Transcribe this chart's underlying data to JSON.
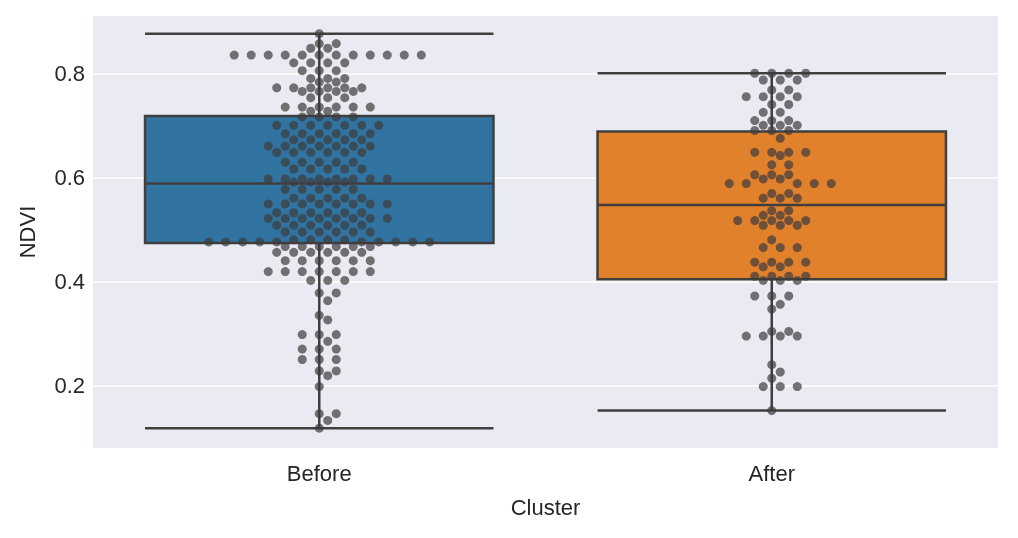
{
  "chart_data": {
    "type": "box",
    "xlabel": "Cluster",
    "ylabel": "NDVI",
    "categories": [
      "Before",
      "After"
    ],
    "colors": [
      "#3274a1",
      "#e1812c"
    ],
    "boxes": [
      {
        "low": 0.118,
        "q1": 0.474,
        "median": 0.588,
        "q3": 0.718,
        "high": 0.876
      },
      {
        "low": 0.152,
        "q1": 0.404,
        "median": 0.547,
        "q3": 0.688,
        "high": 0.8
      }
    ],
    "ylim": [
      0.08,
      0.91
    ],
    "yticks": [
      0.2,
      0.4,
      0.6,
      0.8
    ],
    "grid": "y",
    "marker": "circle",
    "series": [
      {
        "type": "scatter",
        "color": "#3c3c3c",
        "x": [
          "Before",
          "Before",
          "Before",
          "Before",
          "Before",
          "Before",
          "Before",
          "Before",
          "Before",
          "Before",
          "Before",
          "Before",
          "Before",
          "Before",
          "Before",
          "Before",
          "Before",
          "Before",
          "Before",
          "Before",
          "Before",
          "Before",
          "Before",
          "Before",
          "Before",
          "Before",
          "Before",
          "Before",
          "Before",
          "Before",
          "Before",
          "Before",
          "Before",
          "Before",
          "Before",
          "Before",
          "Before",
          "Before",
          "Before",
          "Before",
          "Before",
          "Before",
          "Before",
          "Before",
          "Before",
          "Before",
          "Before",
          "Before",
          "Before",
          "Before",
          "Before",
          "Before",
          "Before",
          "Before",
          "Before",
          "Before",
          "Before",
          "Before",
          "Before",
          "Before",
          "Before",
          "Before",
          "Before",
          "Before",
          "Before",
          "Before",
          "Before",
          "Before",
          "Before",
          "Before",
          "Before",
          "Before",
          "Before",
          "Before",
          "Before",
          "Before",
          "Before",
          "Before",
          "Before",
          "Before",
          "Before",
          "Before",
          "Before",
          "Before",
          "Before",
          "Before",
          "Before",
          "Before",
          "Before",
          "Before",
          "Before",
          "Before",
          "Before",
          "Before",
          "Before",
          "Before",
          "Before",
          "Before",
          "Before",
          "Before",
          "Before",
          "Before",
          "Before",
          "Before",
          "Before",
          "Before",
          "Before",
          "Before",
          "Before",
          "Before",
          "Before",
          "Before",
          "Before",
          "Before",
          "Before",
          "Before",
          "Before",
          "Before",
          "Before",
          "Before",
          "Before",
          "Before",
          "Before",
          "Before",
          "Before",
          "Before",
          "Before",
          "Before",
          "Before",
          "Before",
          "Before",
          "Before",
          "Before",
          "Before",
          "Before",
          "Before",
          "Before",
          "Before",
          "Before",
          "Before",
          "Before",
          "Before",
          "Before",
          "Before",
          "Before",
          "Before",
          "Before",
          "Before",
          "Before",
          "Before",
          "Before",
          "Before",
          "Before",
          "Before",
          "Before",
          "Before",
          "Before",
          "Before",
          "Before",
          "Before",
          "Before",
          "Before",
          "Before",
          "Before",
          "Before",
          "Before",
          "Before",
          "Before",
          "Before",
          "Before",
          "Before",
          "Before",
          "Before",
          "Before",
          "Before",
          "Before",
          "Before",
          "Before",
          "Before",
          "Before",
          "Before",
          "Before",
          "Before",
          "Before",
          "Before",
          "Before",
          "Before",
          "Before",
          "Before",
          "Before",
          "Before",
          "Before",
          "Before",
          "Before",
          "Before",
          "Before",
          "Before",
          "Before",
          "Before",
          "Before",
          "Before",
          "Before",
          "Before",
          "Before",
          "Before",
          "Before",
          "Before",
          "Before",
          "Before",
          "Before",
          "Before",
          "Before",
          "Before",
          "Before",
          "Before",
          "Before"
        ],
        "values": [
          0.876,
          0.857,
          0.857,
          0.848,
          0.848,
          0.835,
          0.835,
          0.835,
          0.835,
          0.835,
          0.835,
          0.835,
          0.835,
          0.835,
          0.835,
          0.835,
          0.835,
          0.82,
          0.82,
          0.82,
          0.82,
          0.805,
          0.805,
          0.805,
          0.79,
          0.79,
          0.79,
          0.783,
          0.783,
          0.772,
          0.772,
          0.772,
          0.772,
          0.772,
          0.772,
          0.765,
          0.765,
          0.765,
          0.765,
          0.753,
          0.753,
          0.753,
          0.735,
          0.735,
          0.735,
          0.735,
          0.735,
          0.735,
          0.727,
          0.727,
          0.716,
          0.716,
          0.716,
          0.716,
          0.7,
          0.7,
          0.7,
          0.7,
          0.7,
          0.7,
          0.7,
          0.684,
          0.684,
          0.684,
          0.684,
          0.684,
          0.684,
          0.672,
          0.672,
          0.672,
          0.672,
          0.672,
          0.66,
          0.66,
          0.66,
          0.66,
          0.66,
          0.66,
          0.66,
          0.648,
          0.648,
          0.648,
          0.648,
          0.648,
          0.648,
          0.629,
          0.629,
          0.629,
          0.629,
          0.629,
          0.616,
          0.616,
          0.616,
          0.616,
          0.616,
          0.597,
          0.597,
          0.597,
          0.597,
          0.597,
          0.597,
          0.597,
          0.597,
          0.591,
          0.591,
          0.591,
          0.591,
          0.577,
          0.577,
          0.577,
          0.577,
          0.577,
          0.56,
          0.56,
          0.56,
          0.56,
          0.56,
          0.549,
          0.549,
          0.549,
          0.549,
          0.549,
          0.549,
          0.549,
          0.549,
          0.532,
          0.532,
          0.532,
          0.532,
          0.532,
          0.532,
          0.521,
          0.521,
          0.521,
          0.521,
          0.521,
          0.521,
          0.521,
          0.521,
          0.508,
          0.508,
          0.508,
          0.508,
          0.508,
          0.508,
          0.495,
          0.495,
          0.495,
          0.495,
          0.495,
          0.495,
          0.48,
          0.48,
          0.48,
          0.48,
          0.476,
          0.476,
          0.476,
          0.476,
          0.476,
          0.476,
          0.476,
          0.476,
          0.476,
          0.476,
          0.467,
          0.467,
          0.467,
          0.467,
          0.467,
          0.467,
          0.456,
          0.456,
          0.456,
          0.456,
          0.456,
          0.456,
          0.44,
          0.44,
          0.44,
          0.44,
          0.44,
          0.44,
          0.419,
          0.419,
          0.419,
          0.419,
          0.419,
          0.419,
          0.419,
          0.402,
          0.402,
          0.402,
          0.378,
          0.378,
          0.363,
          0.335,
          0.326,
          0.298,
          0.298,
          0.298,
          0.285,
          0.27,
          0.27,
          0.27,
          0.25,
          0.25,
          0.25,
          0.228,
          0.228,
          0.219,
          0.198,
          0.146,
          0.146,
          0.133,
          0.118
        ]
      },
      {
        "type": "scatter",
        "color": "#3c3c3c",
        "x": [
          "After",
          "After",
          "After",
          "After",
          "After",
          "After",
          "After",
          "After",
          "After",
          "After",
          "After",
          "After",
          "After",
          "After",
          "After",
          "After",
          "After",
          "After",
          "After",
          "After",
          "After",
          "After",
          "After",
          "After",
          "After",
          "After",
          "After",
          "After",
          "After",
          "After",
          "After",
          "After",
          "After",
          "After",
          "After",
          "After",
          "After",
          "After",
          "After",
          "After",
          "After",
          "After",
          "After",
          "After",
          "After",
          "After",
          "After",
          "After",
          "After",
          "After",
          "After",
          "After",
          "After",
          "After",
          "After",
          "After",
          "After",
          "After",
          "After",
          "After",
          "After",
          "After",
          "After",
          "After",
          "After",
          "After",
          "After",
          "After",
          "After",
          "After",
          "After",
          "After",
          "After",
          "After",
          "After",
          "After",
          "After",
          "After",
          "After",
          "After",
          "After",
          "After",
          "After",
          "After",
          "After",
          "After",
          "After",
          "After",
          "After",
          "After",
          "After",
          "After",
          "After",
          "After",
          "After",
          "After"
        ],
        "values": [
          0.8,
          0.8,
          0.8,
          0.8,
          0.787,
          0.787,
          0.787,
          0.768,
          0.768,
          0.755,
          0.755,
          0.755,
          0.755,
          0.74,
          0.74,
          0.725,
          0.725,
          0.709,
          0.709,
          0.709,
          0.7,
          0.7,
          0.7,
          0.69,
          0.69,
          0.69,
          0.675,
          0.648,
          0.648,
          0.648,
          0.648,
          0.642,
          0.624,
          0.624,
          0.605,
          0.605,
          0.605,
          0.597,
          0.597,
          0.588,
          0.588,
          0.588,
          0.588,
          0.588,
          0.569,
          0.569,
          0.56,
          0.56,
          0.56,
          0.536,
          0.536,
          0.527,
          0.527,
          0.517,
          0.517,
          0.517,
          0.517,
          0.517,
          0.508,
          0.508,
          0.508,
          0.48,
          0.465,
          0.465,
          0.465,
          0.437,
          0.437,
          0.437,
          0.437,
          0.428,
          0.428,
          0.41,
          0.41,
          0.41,
          0.41,
          0.402,
          0.402,
          0.402,
          0.372,
          0.372,
          0.372,
          0.356,
          0.347,
          0.304,
          0.304,
          0.295,
          0.295,
          0.295,
          0.295,
          0.24,
          0.226,
          0.214,
          0.198,
          0.198,
          0.198,
          0.152
        ]
      }
    ]
  }
}
